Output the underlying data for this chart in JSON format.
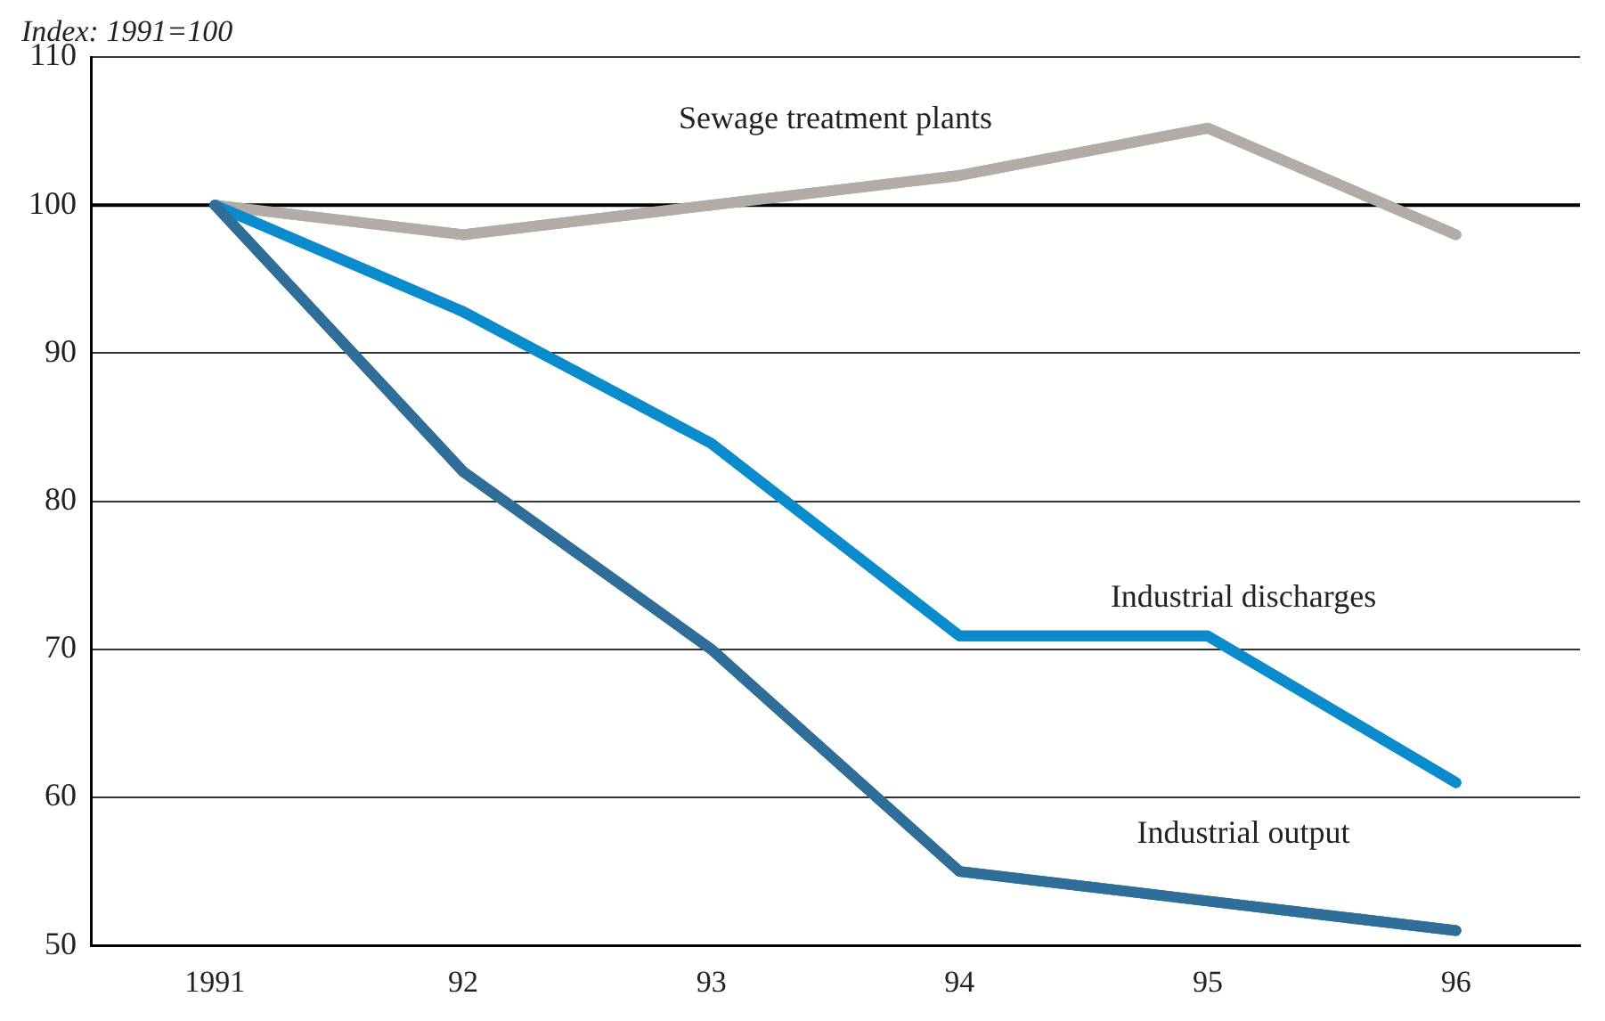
{
  "chart_data": {
    "type": "line",
    "ylabel": "Index: 1991=100",
    "categories": [
      "1991",
      "92",
      "93",
      "94",
      "95",
      "96"
    ],
    "series": [
      {
        "name": "Sewage treatment plants",
        "color": "#b3aba6",
        "values": [
          100,
          98,
          100,
          102,
          105.2,
          98
        ]
      },
      {
        "name": "Industrial discharges",
        "color": "#0a8ccc",
        "values": [
          100,
          92.8,
          83.9,
          70.9,
          70.9,
          61
        ]
      },
      {
        "name": "Industrial output",
        "color": "#2e6e99",
        "values": [
          100,
          82,
          70,
          55,
          53,
          51
        ]
      }
    ],
    "ref_lines": [
      {
        "axis": "y",
        "value": 100,
        "color": "#000000"
      }
    ],
    "ylim": [
      50,
      110
    ],
    "yticks": [
      50,
      60,
      70,
      80,
      90,
      100,
      110
    ],
    "grid": "y",
    "legend": false,
    "marker": "none",
    "line_style": "solid"
  }
}
